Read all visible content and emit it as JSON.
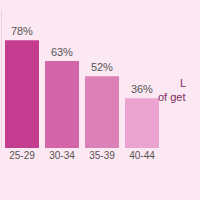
{
  "chart_data": {
    "type": "bar",
    "categories": [
      "25-29",
      "30-34",
      "35-39",
      "40-44"
    ],
    "values": [
      78,
      63,
      52,
      36
    ],
    "value_labels": [
      "78%",
      "63%",
      "52%",
      "36%"
    ],
    "colors": [
      "#c53d90",
      "#d465a8",
      "#dc80b8",
      "#eba4d0"
    ],
    "ylim": [
      0,
      100
    ],
    "data_labels": true,
    "tick_labels": "x",
    "grid": false,
    "annotations": [
      "L",
      "of get"
    ]
  }
}
